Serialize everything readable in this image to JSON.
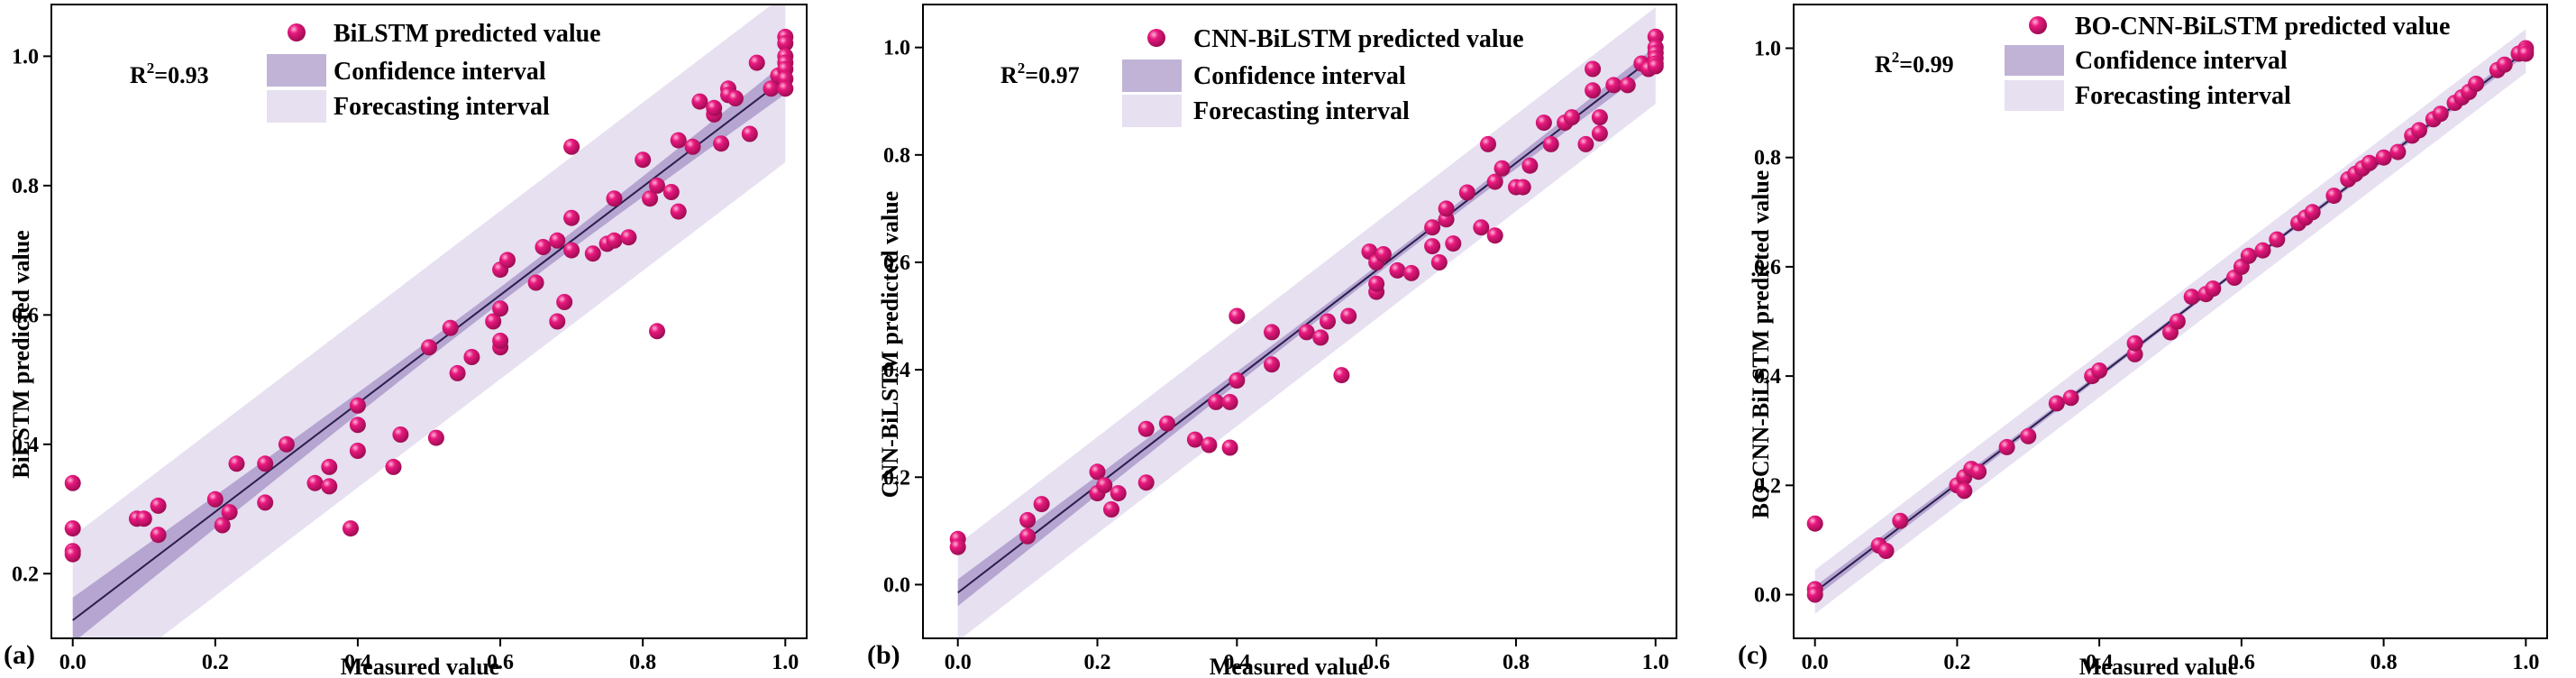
{
  "colors": {
    "point": "#e8187e",
    "point_highlight": "#ffb3d6",
    "fit_line": "#2b1d4e",
    "confidence": "#8c74b4",
    "forecast": "#d9d0ea",
    "axis": "#000000"
  },
  "chart_data": [
    {
      "type": "scatter",
      "panel_label": "(a)",
      "xlabel": "Measured value",
      "ylabel": "BiLSTM predicted value",
      "xlim": [
        -0.03,
        1.03
      ],
      "ylim": [
        0.1,
        1.08
      ],
      "xticks": [
        0.0,
        0.2,
        0.4,
        0.6,
        0.8,
        1.0
      ],
      "xtick_labels": [
        "0.0",
        "0.2",
        "0.4",
        "0.6",
        "0.8",
        "1.0"
      ],
      "yticks": [
        0.2,
        0.4,
        0.6,
        0.8,
        1.0
      ],
      "ytick_labels": [
        "0.2",
        "0.4",
        "0.6",
        "0.8",
        "1.0"
      ],
      "r2_base": "R",
      "r2_sup": "2",
      "r2_value": "=0.93",
      "legend": [
        "BiLSTM predicted value",
        "Confidence interval",
        "Forecasting interval"
      ],
      "fit": {
        "slope": 0.838,
        "intercept": 0.128,
        "x_range": [
          0.0,
          1.0
        ]
      },
      "confidence_halfwidth": {
        "at_mean": 0.012,
        "at_ends": 0.035
      },
      "forecast_halfwidth": 0.13,
      "points": [
        [
          0.0,
          0.34
        ],
        [
          0.0,
          0.27
        ],
        [
          0.0,
          0.235
        ],
        [
          0.0,
          0.23
        ],
        [
          0.09,
          0.285
        ],
        [
          0.1,
          0.285
        ],
        [
          0.12,
          0.305
        ],
        [
          0.12,
          0.26
        ],
        [
          0.2,
          0.315
        ],
        [
          0.21,
          0.275
        ],
        [
          0.22,
          0.295
        ],
        [
          0.23,
          0.37
        ],
        [
          0.27,
          0.31
        ],
        [
          0.27,
          0.37
        ],
        [
          0.3,
          0.4
        ],
        [
          0.34,
          0.34
        ],
        [
          0.36,
          0.335
        ],
        [
          0.36,
          0.365
        ],
        [
          0.39,
          0.27
        ],
        [
          0.4,
          0.39
        ],
        [
          0.4,
          0.43
        ],
        [
          0.4,
          0.46
        ],
        [
          0.45,
          0.365
        ],
        [
          0.46,
          0.415
        ],
        [
          0.5,
          0.55
        ],
        [
          0.51,
          0.41
        ],
        [
          0.53,
          0.58
        ],
        [
          0.54,
          0.51
        ],
        [
          0.56,
          0.535
        ],
        [
          0.59,
          0.59
        ],
        [
          0.6,
          0.61
        ],
        [
          0.6,
          0.55
        ],
        [
          0.6,
          0.56
        ],
        [
          0.6,
          0.67
        ],
        [
          0.61,
          0.685
        ],
        [
          0.65,
          0.65
        ],
        [
          0.66,
          0.705
        ],
        [
          0.68,
          0.59
        ],
        [
          0.68,
          0.715
        ],
        [
          0.69,
          0.62
        ],
        [
          0.7,
          0.75
        ],
        [
          0.7,
          0.86
        ],
        [
          0.7,
          0.7
        ],
        [
          0.73,
          0.695
        ],
        [
          0.75,
          0.71
        ],
        [
          0.76,
          0.715
        ],
        [
          0.76,
          0.78
        ],
        [
          0.78,
          0.72
        ],
        [
          0.8,
          0.84
        ],
        [
          0.81,
          0.78
        ],
        [
          0.82,
          0.575
        ],
        [
          0.82,
          0.8
        ],
        [
          0.84,
          0.79
        ],
        [
          0.85,
          0.76
        ],
        [
          0.85,
          0.87
        ],
        [
          0.87,
          0.86
        ],
        [
          0.88,
          0.93
        ],
        [
          0.9,
          0.91
        ],
        [
          0.9,
          0.92
        ],
        [
          0.91,
          0.865
        ],
        [
          0.92,
          0.95
        ],
        [
          0.92,
          0.94
        ],
        [
          0.93,
          0.935
        ],
        [
          0.95,
          0.88
        ],
        [
          0.96,
          0.99
        ],
        [
          0.98,
          0.95
        ],
        [
          0.99,
          0.97
        ],
        [
          1.0,
          1.03
        ],
        [
          1.0,
          1.02
        ],
        [
          1.0,
          1.0
        ],
        [
          1.0,
          0.99
        ],
        [
          1.0,
          0.98
        ],
        [
          1.0,
          0.965
        ],
        [
          1.0,
          0.95
        ]
      ]
    },
    {
      "type": "scatter",
      "panel_label": "(b)",
      "xlabel": "Measured value",
      "ylabel": "CNN-BiLSTM predicted value",
      "xlim": [
        -0.05,
        1.03
      ],
      "ylim": [
        -0.1,
        1.08
      ],
      "xticks": [
        0.0,
        0.2,
        0.4,
        0.6,
        0.8,
        1.0
      ],
      "xtick_labels": [
        "0.0",
        "0.2",
        "0.4",
        "0.6",
        "0.8",
        "1.0"
      ],
      "yticks": [
        0.0,
        0.2,
        0.4,
        0.6,
        0.8,
        1.0
      ],
      "ytick_labels": [
        "0.0",
        "0.2",
        "0.4",
        "0.6",
        "0.8",
        "1.0"
      ],
      "r2_base": "R",
      "r2_sup": "2",
      "r2_value": "=0.97",
      "legend": [
        "CNN-BiLSTM predicted value",
        "Confidence interval",
        "Forecasting interval"
      ],
      "fit": {
        "slope": 1.0,
        "intercept": -0.015,
        "x_range": [
          0.0,
          1.0
        ]
      },
      "confidence_halfwidth": {
        "at_mean": 0.008,
        "at_ends": 0.025
      },
      "forecast_halfwidth": 0.09,
      "points": [
        [
          0.0,
          0.085
        ],
        [
          0.0,
          0.07
        ],
        [
          0.1,
          0.09
        ],
        [
          0.1,
          0.12
        ],
        [
          0.12,
          0.15
        ],
        [
          0.2,
          0.21
        ],
        [
          0.2,
          0.17
        ],
        [
          0.21,
          0.185
        ],
        [
          0.22,
          0.14
        ],
        [
          0.23,
          0.17
        ],
        [
          0.27,
          0.19
        ],
        [
          0.27,
          0.29
        ],
        [
          0.3,
          0.3
        ],
        [
          0.34,
          0.27
        ],
        [
          0.36,
          0.26
        ],
        [
          0.37,
          0.34
        ],
        [
          0.39,
          0.255
        ],
        [
          0.39,
          0.34
        ],
        [
          0.4,
          0.38
        ],
        [
          0.4,
          0.5
        ],
        [
          0.45,
          0.41
        ],
        [
          0.45,
          0.47
        ],
        [
          0.5,
          0.47
        ],
        [
          0.52,
          0.46
        ],
        [
          0.53,
          0.49
        ],
        [
          0.55,
          0.39
        ],
        [
          0.56,
          0.5
        ],
        [
          0.59,
          0.62
        ],
        [
          0.6,
          0.545
        ],
        [
          0.6,
          0.56
        ],
        [
          0.6,
          0.6
        ],
        [
          0.61,
          0.615
        ],
        [
          0.63,
          0.585
        ],
        [
          0.65,
          0.58
        ],
        [
          0.68,
          0.63
        ],
        [
          0.68,
          0.665
        ],
        [
          0.69,
          0.6
        ],
        [
          0.7,
          0.68
        ],
        [
          0.7,
          0.7
        ],
        [
          0.71,
          0.635
        ],
        [
          0.73,
          0.73
        ],
        [
          0.75,
          0.665
        ],
        [
          0.76,
          0.82
        ],
        [
          0.77,
          0.75
        ],
        [
          0.77,
          0.65
        ],
        [
          0.78,
          0.775
        ],
        [
          0.8,
          0.74
        ],
        [
          0.81,
          0.74
        ],
        [
          0.82,
          0.78
        ],
        [
          0.84,
          0.86
        ],
        [
          0.85,
          0.82
        ],
        [
          0.87,
          0.86
        ],
        [
          0.88,
          0.87
        ],
        [
          0.9,
          0.82
        ],
        [
          0.91,
          0.92
        ],
        [
          0.91,
          0.96
        ],
        [
          0.92,
          0.84
        ],
        [
          0.92,
          0.87
        ],
        [
          0.94,
          0.93
        ],
        [
          0.96,
          0.93
        ],
        [
          0.98,
          0.97
        ],
        [
          0.99,
          0.96
        ],
        [
          1.0,
          1.02
        ],
        [
          1.0,
          1.0
        ],
        [
          1.0,
          0.99
        ],
        [
          1.0,
          0.98
        ],
        [
          1.0,
          0.97
        ],
        [
          1.0,
          0.965
        ]
      ]
    },
    {
      "type": "scatter",
      "panel_label": "(c)",
      "xlabel": "Measured value",
      "ylabel": "BO-CNN-BiLSTM predicted value",
      "xlim": [
        -0.03,
        1.03
      ],
      "ylim": [
        -0.08,
        1.08
      ],
      "xticks": [
        0.0,
        0.2,
        0.4,
        0.6,
        0.8,
        1.0
      ],
      "xtick_labels": [
        "0.0",
        "0.2",
        "0.4",
        "0.6",
        "0.8",
        "1.0"
      ],
      "yticks": [
        0.0,
        0.2,
        0.4,
        0.6,
        0.8,
        1.0
      ],
      "ytick_labels": [
        "0.0",
        "0.2",
        "0.4",
        "0.6",
        "0.8",
        "1.0"
      ],
      "r2_base": "R",
      "r2_sup": "2",
      "r2_value": "=0.99",
      "legend": [
        "BO-CNN-BiLSTM predicted value",
        "Confidence interval",
        "Forecasting interval"
      ],
      "fit": {
        "slope": 0.99,
        "intercept": 0.005,
        "x_range": [
          0.0,
          1.0
        ]
      },
      "confidence_halfwidth": {
        "at_mean": 0.004,
        "at_ends": 0.01
      },
      "forecast_halfwidth": 0.04,
      "points": [
        [
          0.0,
          0.13
        ],
        [
          0.0,
          0.01
        ],
        [
          0.0,
          0.0
        ],
        [
          0.09,
          0.09
        ],
        [
          0.1,
          0.08
        ],
        [
          0.12,
          0.135
        ],
        [
          0.2,
          0.2
        ],
        [
          0.21,
          0.215
        ],
        [
          0.21,
          0.19
        ],
        [
          0.22,
          0.23
        ],
        [
          0.23,
          0.225
        ],
        [
          0.27,
          0.27
        ],
        [
          0.3,
          0.29
        ],
        [
          0.34,
          0.35
        ],
        [
          0.36,
          0.36
        ],
        [
          0.39,
          0.4
        ],
        [
          0.4,
          0.41
        ],
        [
          0.45,
          0.44
        ],
        [
          0.45,
          0.46
        ],
        [
          0.5,
          0.48
        ],
        [
          0.51,
          0.5
        ],
        [
          0.53,
          0.545
        ],
        [
          0.55,
          0.55
        ],
        [
          0.56,
          0.56
        ],
        [
          0.59,
          0.58
        ],
        [
          0.6,
          0.6
        ],
        [
          0.61,
          0.62
        ],
        [
          0.63,
          0.63
        ],
        [
          0.65,
          0.65
        ],
        [
          0.68,
          0.68
        ],
        [
          0.69,
          0.69
        ],
        [
          0.7,
          0.7
        ],
        [
          0.73,
          0.73
        ],
        [
          0.75,
          0.76
        ],
        [
          0.76,
          0.77
        ],
        [
          0.77,
          0.78
        ],
        [
          0.78,
          0.79
        ],
        [
          0.8,
          0.8
        ],
        [
          0.82,
          0.81
        ],
        [
          0.84,
          0.84
        ],
        [
          0.85,
          0.85
        ],
        [
          0.87,
          0.87
        ],
        [
          0.88,
          0.88
        ],
        [
          0.9,
          0.9
        ],
        [
          0.91,
          0.91
        ],
        [
          0.92,
          0.92
        ],
        [
          0.93,
          0.935
        ],
        [
          0.96,
          0.96
        ],
        [
          0.97,
          0.97
        ],
        [
          0.99,
          0.99
        ],
        [
          1.0,
          1.0
        ],
        [
          1.0,
          0.995
        ],
        [
          1.0,
          0.99
        ]
      ]
    }
  ]
}
